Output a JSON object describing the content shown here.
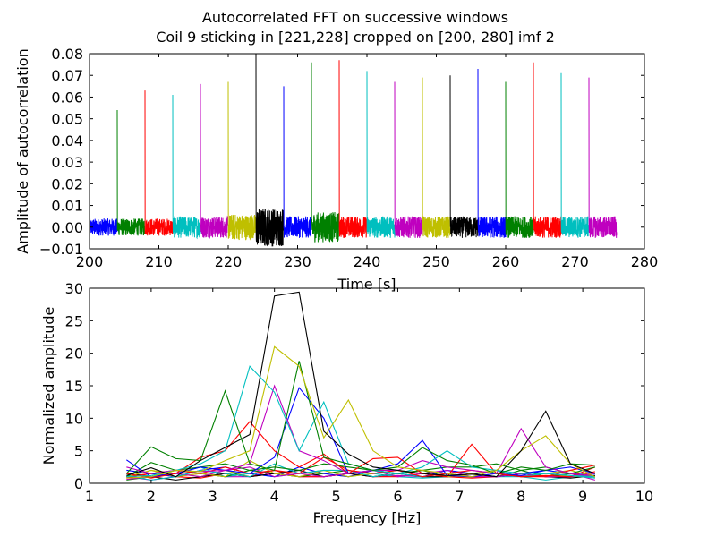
{
  "figure": {
    "title_line1": "Autocorrelated FFT on successive windows",
    "title_line2": "Coil 9 sticking in [221,228] cropped on [200, 280] imf 2"
  },
  "chart_data": [
    {
      "type": "line",
      "xlabel": "Time [s]",
      "ylabel": "Amplitude of autocorrelation",
      "xlim": [
        200,
        280
      ],
      "ylim": [
        -0.01,
        0.08
      ],
      "xticks": [
        "200",
        "210",
        "220",
        "230",
        "240",
        "250",
        "260",
        "270",
        "280"
      ],
      "yticks": [
        "−0.01",
        "0.00",
        "0.01",
        "0.02",
        "0.03",
        "0.04",
        "0.05",
        "0.06",
        "0.07",
        "0.08"
      ],
      "grid": false,
      "series": [
        {
          "color": "#0000ff",
          "x_start": 200,
          "x_end": 204,
          "peak_x": 200,
          "peak": 0.004,
          "noise": 0.004
        },
        {
          "color": "#008000",
          "x_start": 204,
          "x_end": 208,
          "peak_x": 204,
          "peak": 0.054,
          "noise": 0.004
        },
        {
          "color": "#ff0000",
          "x_start": 208,
          "x_end": 212,
          "peak_x": 208,
          "peak": 0.063,
          "noise": 0.004
        },
        {
          "color": "#00bfbf",
          "x_start": 212,
          "x_end": 216,
          "peak_x": 212,
          "peak": 0.061,
          "noise": 0.005
        },
        {
          "color": "#bf00bf",
          "x_start": 216,
          "x_end": 220,
          "peak_x": 216,
          "peak": 0.066,
          "noise": 0.005
        },
        {
          "color": "#bfbf00",
          "x_start": 220,
          "x_end": 224,
          "peak_x": 220,
          "peak": 0.067,
          "noise": 0.006
        },
        {
          "color": "#000000",
          "x_start": 224,
          "x_end": 228,
          "peak_x": 224,
          "peak": 0.08,
          "noise": 0.009
        },
        {
          "color": "#0000ff",
          "x_start": 228,
          "x_end": 232,
          "peak_x": 228,
          "peak": 0.065,
          "noise": 0.005
        },
        {
          "color": "#008000",
          "x_start": 232,
          "x_end": 236,
          "peak_x": 232,
          "peak": 0.076,
          "noise": 0.007
        },
        {
          "color": "#ff0000",
          "x_start": 236,
          "x_end": 240,
          "peak_x": 236,
          "peak": 0.077,
          "noise": 0.005
        },
        {
          "color": "#00bfbf",
          "x_start": 240,
          "x_end": 244,
          "peak_x": 240,
          "peak": 0.072,
          "noise": 0.005
        },
        {
          "color": "#bf00bf",
          "x_start": 244,
          "x_end": 248,
          "peak_x": 244,
          "peak": 0.067,
          "noise": 0.005
        },
        {
          "color": "#bfbf00",
          "x_start": 248,
          "x_end": 252,
          "peak_x": 248,
          "peak": 0.069,
          "noise": 0.005
        },
        {
          "color": "#000000",
          "x_start": 252,
          "x_end": 256,
          "peak_x": 252,
          "peak": 0.07,
          "noise": 0.005
        },
        {
          "color": "#0000ff",
          "x_start": 256,
          "x_end": 260,
          "peak_x": 256,
          "peak": 0.073,
          "noise": 0.005
        },
        {
          "color": "#008000",
          "x_start": 260,
          "x_end": 264,
          "peak_x": 260,
          "peak": 0.067,
          "noise": 0.005
        },
        {
          "color": "#ff0000",
          "x_start": 264,
          "x_end": 268,
          "peak_x": 264,
          "peak": 0.076,
          "noise": 0.005
        },
        {
          "color": "#00bfbf",
          "x_start": 268,
          "x_end": 272,
          "peak_x": 268,
          "peak": 0.071,
          "noise": 0.005
        },
        {
          "color": "#bf00bf",
          "x_start": 272,
          "x_end": 276,
          "peak_x": 272,
          "peak": 0.069,
          "noise": 0.005
        }
      ]
    },
    {
      "type": "line",
      "xlabel": "Frequency [Hz]",
      "ylabel": "Normalized amplitude",
      "xlim": [
        1,
        10
      ],
      "ylim": [
        0,
        30
      ],
      "xticks": [
        "1",
        "2",
        "3",
        "4",
        "5",
        "6",
        "7",
        "8",
        "9",
        "10"
      ],
      "yticks": [
        "0",
        "5",
        "10",
        "15",
        "20",
        "25",
        "30"
      ],
      "grid": false,
      "x": [
        1.6,
        2.0,
        2.4,
        2.8,
        3.2,
        3.6,
        4.0,
        4.4,
        4.8,
        5.2,
        5.6,
        6.0,
        6.4,
        6.8,
        7.2,
        7.6,
        8.0,
        8.4,
        8.8,
        9.2
      ],
      "series": [
        {
          "color": "#000000",
          "values": [
            1.2,
            2.4,
            1.0,
            3.5,
            5.5,
            7.5,
            28.8,
            29.4,
            8.0,
            4.5,
            2.5,
            2.0,
            1.5,
            1.2,
            1.4,
            1.0,
            5.0,
            11.1,
            3.0,
            1.5
          ]
        },
        {
          "color": "#bfbf00",
          "values": [
            0.8,
            1.0,
            2.0,
            1.8,
            3.5,
            5.0,
            21.0,
            18.0,
            7.0,
            12.8,
            5.0,
            2.5,
            2.0,
            1.5,
            1.0,
            2.0,
            5.0,
            7.3,
            3.0,
            1.0
          ]
        },
        {
          "color": "#008000",
          "values": [
            1.5,
            5.6,
            3.8,
            3.5,
            14.2,
            3.0,
            2.0,
            18.8,
            4.0,
            3.0,
            2.0,
            2.5,
            5.5,
            3.5,
            2.8,
            1.5,
            2.5,
            2.0,
            3.0,
            2.8
          ]
        },
        {
          "color": "#00bfbf",
          "values": [
            1.0,
            1.2,
            2.0,
            3.0,
            5.0,
            18.0,
            14.0,
            5.0,
            12.5,
            3.0,
            2.0,
            1.5,
            2.5,
            5.0,
            2.5,
            2.0,
            1.5,
            1.5,
            1.2,
            1.0
          ]
        },
        {
          "color": "#bf00bf",
          "values": [
            2.5,
            1.5,
            2.0,
            1.8,
            2.0,
            3.0,
            15.0,
            5.0,
            3.5,
            1.5,
            2.0,
            2.0,
            3.5,
            2.5,
            2.0,
            1.5,
            8.4,
            2.5,
            1.5,
            1.0
          ]
        },
        {
          "color": "#ff0000",
          "values": [
            1.5,
            0.8,
            1.5,
            4.0,
            5.0,
            9.5,
            5.0,
            2.5,
            4.5,
            1.5,
            3.8,
            4.0,
            1.5,
            1.0,
            6.0,
            1.5,
            1.0,
            1.0,
            2.0,
            2.8
          ]
        },
        {
          "color": "#0000ff",
          "values": [
            3.6,
            1.0,
            1.5,
            2.5,
            2.0,
            1.5,
            4.0,
            14.7,
            10.0,
            1.5,
            2.0,
            3.0,
            6.6,
            1.2,
            1.0,
            1.5,
            1.2,
            2.0,
            2.5,
            1.5
          ]
        },
        {
          "color": "#008000",
          "values": [
            1.0,
            3.2,
            2.0,
            2.5,
            3.0,
            2.0,
            2.5,
            2.0,
            3.0,
            2.5,
            2.0,
            1.5,
            2.0,
            2.5,
            2.5,
            3.0,
            2.0,
            2.5,
            1.5,
            2.5
          ]
        },
        {
          "color": "#ff0000",
          "values": [
            0.8,
            1.5,
            2.0,
            1.5,
            2.5,
            1.5,
            2.0,
            1.5,
            4.0,
            2.0,
            1.5,
            2.0,
            1.0,
            1.5,
            2.0,
            1.5,
            1.0,
            1.2,
            1.0,
            2.5
          ]
        },
        {
          "color": "#00bfbf",
          "values": [
            1.2,
            0.5,
            1.0,
            2.0,
            1.5,
            1.0,
            3.0,
            1.5,
            2.0,
            2.0,
            1.0,
            1.5,
            1.0,
            1.5,
            1.0,
            2.0,
            1.0,
            1.5,
            1.2,
            0.8
          ]
        },
        {
          "color": "#bf00bf",
          "values": [
            0.6,
            1.0,
            1.5,
            1.0,
            2.0,
            2.5,
            1.0,
            1.5,
            1.0,
            1.5,
            2.0,
            1.0,
            1.5,
            2.0,
            1.0,
            1.0,
            1.5,
            1.0,
            1.0,
            1.5
          ]
        },
        {
          "color": "#bfbf00",
          "values": [
            1.0,
            2.0,
            1.0,
            1.5,
            1.0,
            3.5,
            1.5,
            1.0,
            2.0,
            1.0,
            1.5,
            2.0,
            1.5,
            1.0,
            1.5,
            2.0,
            1.0,
            1.5,
            2.0,
            1.0
          ]
        },
        {
          "color": "#000000",
          "values": [
            1.5,
            1.0,
            0.5,
            1.0,
            1.5,
            1.0,
            1.5,
            2.0,
            1.0,
            1.5,
            1.0,
            1.5,
            1.0,
            1.0,
            1.5,
            1.0,
            1.5,
            1.0,
            0.8,
            1.2
          ]
        },
        {
          "color": "#0000ff",
          "values": [
            2.0,
            1.5,
            1.0,
            2.0,
            2.5,
            1.5,
            1.0,
            2.5,
            1.5,
            1.0,
            2.0,
            1.5,
            1.0,
            2.0,
            1.5,
            1.0,
            1.5,
            2.0,
            1.5,
            1.2
          ]
        },
        {
          "color": "#008000",
          "values": [
            0.5,
            1.0,
            2.0,
            1.5,
            1.0,
            2.0,
            1.5,
            1.0,
            1.5,
            2.0,
            1.0,
            1.5,
            2.0,
            1.0,
            1.5,
            1.0,
            2.0,
            1.0,
            1.5,
            1.0
          ]
        },
        {
          "color": "#ff0000",
          "values": [
            1.0,
            1.5,
            1.0,
            0.8,
            1.5,
            1.0,
            2.0,
            1.0,
            1.0,
            1.5,
            1.0,
            1.0,
            1.5,
            1.0,
            0.8,
            1.0,
            1.5,
            1.0,
            1.0,
            1.8
          ]
        },
        {
          "color": "#00bfbf",
          "values": [
            1.5,
            1.0,
            1.5,
            2.5,
            1.0,
            1.5,
            1.0,
            1.5,
            2.0,
            1.0,
            1.5,
            1.0,
            0.8,
            1.0,
            1.5,
            1.0,
            1.0,
            0.5,
            1.0,
            1.5
          ]
        },
        {
          "color": "#bf00bf",
          "values": [
            1.0,
            0.5,
            1.0,
            1.5,
            1.0,
            1.0,
            1.5,
            1.0,
            1.0,
            1.5,
            1.0,
            1.2,
            1.0,
            1.5,
            1.0,
            1.0,
            1.2,
            1.0,
            1.5,
            0.5
          ]
        },
        {
          "color": "#bfbf00",
          "values": [
            1.0,
            2.0,
            1.5,
            1.0,
            2.0,
            1.0,
            1.5,
            1.0,
            1.5,
            1.0,
            2.0,
            1.0,
            1.5,
            1.0,
            1.0,
            1.5,
            1.0,
            1.5,
            1.0,
            1.0
          ]
        }
      ]
    }
  ]
}
